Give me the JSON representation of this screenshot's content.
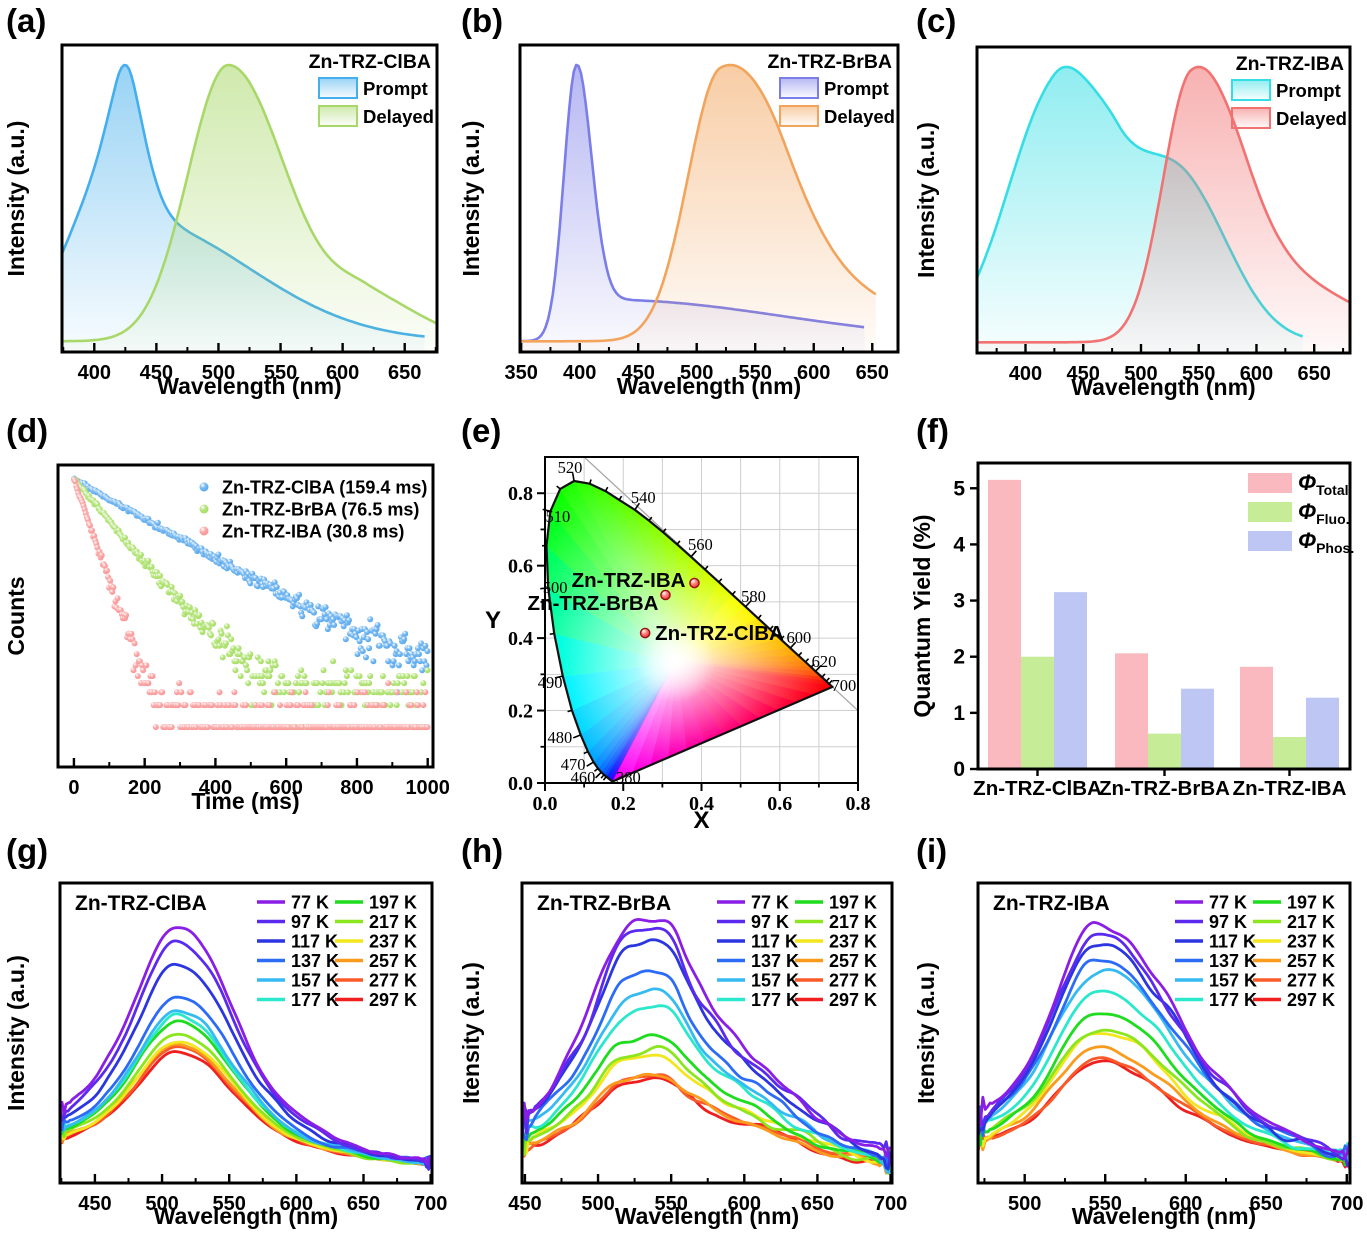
{
  "figure": {
    "background": "#ffffff"
  },
  "temperatures": [
    "77 K",
    "97 K",
    "117 K",
    "137 K",
    "157 K",
    "177 K",
    "197 K",
    "217 K",
    "237 K",
    "257 K",
    "277 K",
    "297 K"
  ],
  "temperature_colors": [
    "#8A1EE6",
    "#5A2BEE",
    "#2B35E0",
    "#2B6BF5",
    "#35BBF2",
    "#2BE8CC",
    "#1EDC1E",
    "#8CE61E",
    "#F2E61E",
    "#FA9B1E",
    "#FA5A28",
    "#F01E1E"
  ],
  "chart_data": [
    {
      "id": "a",
      "label": "(a)",
      "type": "area_spectra",
      "legend_title": "Zn-TRZ-ClBA",
      "legend_items": [
        "Prompt",
        "Delayed"
      ],
      "xlabel": "Wavelength (nm)",
      "ylabel": "Intensity (a.u.)",
      "x_range": [
        374,
        676
      ],
      "x_ticks": [
        400,
        450,
        500,
        550,
        600,
        650
      ],
      "x_minor": 25,
      "series": [
        {
          "name": "Prompt",
          "peak_nm": 418,
          "color": "#45AEEC",
          "x_end": 666,
          "components": [
            [
              0.62,
              418,
              52,
              26
            ],
            [
              0.42,
              432,
              22,
              130
            ]
          ]
        },
        {
          "name": "Delayed",
          "peak_nm": 508,
          "color": "#A9D86A",
          "x_end": 676,
          "components": [
            [
              1,
              508,
              46,
              66
            ],
            [
              0.15,
              620,
              40,
              60
            ]
          ]
        }
      ]
    },
    {
      "id": "b",
      "label": "(b)",
      "type": "area_spectra",
      "legend_title": "Zn-TRZ-BrBA",
      "legend_items": [
        "Prompt",
        "Delayed"
      ],
      "xlabel": "Wavelength (nm)",
      "ylabel": "Intensity (a.u.)",
      "x_range": [
        349,
        672
      ],
      "x_ticks": [
        350,
        400,
        450,
        500,
        550,
        600,
        650
      ],
      "x_minor": 25,
      "series": [
        {
          "name": "Prompt",
          "peak_nm": 397,
          "color": "#7B7DE8",
          "x_end": 644,
          "components": [
            [
              1,
              397,
              15,
              18
            ],
            [
              0.16,
              425,
              30,
              210
            ]
          ]
        },
        {
          "name": "Delayed",
          "peak_nm": 520,
          "color": "#F2A45C",
          "x_end": 653,
          "components": [
            [
              1,
              520,
              40,
              70
            ],
            [
              0.22,
              575,
              45,
              130
            ]
          ]
        }
      ]
    },
    {
      "id": "c",
      "label": "(c)",
      "type": "area_spectra",
      "legend_title": "Zn-TRZ-IBA",
      "legend_items": [
        "Prompt",
        "Delayed"
      ],
      "xlabel": "Wavelength (nm)",
      "ylabel": "Intensity (a.u.)",
      "x_range": [
        358,
        681
      ],
      "x_ticks": [
        400,
        450,
        500,
        550,
        600,
        650
      ],
      "x_minor": 25,
      "series": [
        {
          "name": "Prompt",
          "peak_nm": 425,
          "color": "#35DEE4",
          "x_end": 640,
          "components": [
            [
              0.85,
              425,
              58,
              45
            ],
            [
              0.5,
              480,
              40,
              70
            ],
            [
              0.35,
              545,
              50,
              55
            ]
          ]
        },
        {
          "name": "Delayed",
          "peak_nm": 543,
          "color": "#F27272",
          "x_end": 681,
          "components": [
            [
              1,
              543,
              35,
              55
            ],
            [
              0.3,
              595,
              55,
              110
            ]
          ]
        }
      ]
    },
    {
      "id": "d",
      "label": "(d)",
      "type": "scatter_decay",
      "xlabel": "Time (ms)",
      "ylabel": "Counts",
      "x_range": [
        -45,
        1015
      ],
      "x_ticks": [
        0,
        200,
        400,
        600,
        800,
        1000
      ],
      "x_minor": 100,
      "counts_top": 2500,
      "log_decades": 3.78,
      "series": [
        {
          "name": "Zn-TRZ-ClBA (159.4 ms)",
          "tau_ms": 159.4,
          "color": "#4DA3EC",
          "bg": 0.0016
        },
        {
          "name": "Zn-TRZ-BrBA (76.5 ms)",
          "tau_ms": 76.5,
          "color": "#A0DC58",
          "bg": 0.001
        },
        {
          "name": "Zn-TRZ-IBA (30.8 ms)",
          "tau_ms": 30.8,
          "color": "#F98F8F",
          "bg": 0.00045
        }
      ]
    },
    {
      "id": "e",
      "label": "(e)",
      "type": "cie",
      "xlabel": "X",
      "ylabel": "Y",
      "x_range": [
        0,
        0.8
      ],
      "y_range": [
        0,
        0.9
      ],
      "ticks": [
        0.0,
        0.2,
        0.4,
        0.6,
        0.8
      ],
      "minor_step": 0.1,
      "label_color": "#2121BD",
      "point_color": "#E42222",
      "diag_line": [
        [
          0.1,
          0.9
        ],
        [
          0.8,
          0.2
        ]
      ],
      "locus": [
        [
          380,
          0.1741,
          0.005
        ],
        [
          420,
          0.1714,
          0.0051
        ],
        [
          440,
          0.1644,
          0.0109
        ],
        [
          450,
          0.1566,
          0.0177
        ],
        [
          455,
          0.151,
          0.0227
        ],
        [
          460,
          0.144,
          0.0297
        ],
        [
          465,
          0.1355,
          0.0399
        ],
        [
          470,
          0.1241,
          0.0578
        ],
        [
          475,
          0.1096,
          0.0868
        ],
        [
          480,
          0.0913,
          0.1327
        ],
        [
          485,
          0.0687,
          0.2007
        ],
        [
          490,
          0.0454,
          0.295
        ],
        [
          495,
          0.0235,
          0.4127
        ],
        [
          500,
          0.0082,
          0.5384
        ],
        [
          505,
          0.0039,
          0.6548
        ],
        [
          510,
          0.0139,
          0.7502
        ],
        [
          515,
          0.0389,
          0.812
        ],
        [
          520,
          0.0743,
          0.8338
        ],
        [
          525,
          0.1142,
          0.8262
        ],
        [
          530,
          0.1547,
          0.8059
        ],
        [
          535,
          0.1896,
          0.7816
        ],
        [
          540,
          0.2296,
          0.7543
        ],
        [
          545,
          0.2658,
          0.7243
        ],
        [
          550,
          0.3016,
          0.6923
        ],
        [
          555,
          0.3373,
          0.6589
        ],
        [
          560,
          0.3731,
          0.6245
        ],
        [
          565,
          0.4087,
          0.5896
        ],
        [
          570,
          0.4441,
          0.5547
        ],
        [
          575,
          0.4788,
          0.5202
        ],
        [
          580,
          0.5125,
          0.4866
        ],
        [
          585,
          0.5448,
          0.4544
        ],
        [
          590,
          0.5752,
          0.4242
        ],
        [
          595,
          0.6029,
          0.3965
        ],
        [
          600,
          0.627,
          0.3725
        ],
        [
          605,
          0.6482,
          0.3514
        ],
        [
          610,
          0.6658,
          0.334
        ],
        [
          615,
          0.6801,
          0.3197
        ],
        [
          620,
          0.6915,
          0.3083
        ],
        [
          630,
          0.7079,
          0.292
        ],
        [
          640,
          0.719,
          0.2809
        ],
        [
          650,
          0.726,
          0.274
        ],
        [
          700,
          0.7347,
          0.2653
        ]
      ],
      "wl_labels": [
        {
          "t": "520",
          "x": 0.064,
          "y": 0.87
        },
        {
          "t": "540",
          "x": 0.251,
          "y": 0.787
        },
        {
          "t": "560",
          "x": 0.397,
          "y": 0.657
        },
        {
          "t": "580",
          "x": 0.533,
          "y": 0.514
        },
        {
          "t": "600",
          "x": 0.649,
          "y": 0.4
        },
        {
          "t": "620",
          "x": 0.713,
          "y": 0.334
        },
        {
          "t": "700",
          "x": 0.764,
          "y": 0.268
        },
        {
          "t": "510",
          "x": 0.033,
          "y": 0.735
        },
        {
          "t": "500",
          "x": 0.026,
          "y": 0.538
        },
        {
          "t": "490",
          "x": 0.013,
          "y": 0.276
        },
        {
          "t": "480",
          "x": 0.038,
          "y": 0.124
        },
        {
          "t": "470",
          "x": 0.072,
          "y": 0.05
        },
        {
          "t": "460",
          "x": 0.097,
          "y": 0.014
        },
        {
          "t": "380",
          "x": 0.213,
          "y": 0.014
        }
      ],
      "points": [
        {
          "name": "Zn-TRZ-ClBA",
          "x": 0.256,
          "y": 0.414,
          "label_side": "right"
        },
        {
          "name": "Zn-TRZ-BrBA",
          "x": 0.308,
          "y": 0.519,
          "label_side": "left-below"
        },
        {
          "name": "Zn-TRZ-IBA",
          "x": 0.382,
          "y": 0.552,
          "label_side": "left"
        }
      ]
    },
    {
      "id": "f",
      "label": "(f)",
      "type": "bar",
      "ylabel": "Quantum Yield (%)",
      "categories": [
        "Zn-TRZ-ClBA",
        "Zn-TRZ-BrBA",
        "Zn-TRZ-IBA"
      ],
      "y_ticks": [
        0,
        1,
        2,
        3,
        4,
        5
      ],
      "y_max": 5.45,
      "series": [
        {
          "name": "Total",
          "legend_main": "Φ",
          "legend_sub": "Total",
          "color": "#F9B9BF",
          "values": [
            5.15,
            2.06,
            1.82
          ]
        },
        {
          "name": "Fluo.",
          "legend_main": "Φ",
          "legend_sub": "Fluo.",
          "color": "#C7EC97",
          "values": [
            2.0,
            0.63,
            0.57
          ]
        },
        {
          "name": "Phos.",
          "legend_main": "Φ",
          "legend_sub": "Phos.",
          "color": "#BEC7F4",
          "values": [
            3.15,
            1.43,
            1.27
          ]
        }
      ]
    },
    {
      "id": "g",
      "label": "(g)",
      "type": "line_spectra",
      "title": "Zn-TRZ-ClBA",
      "xlabel": "Wavelength (nm)",
      "ylabel": "Intensity (a.u.)",
      "x_range": [
        424,
        701
      ],
      "x_ticks": [
        450,
        500,
        550,
        600,
        650,
        700
      ],
      "x_minor": 25,
      "peak_nm": 511,
      "scale": 0.8,
      "noise": 0.004,
      "components": [
        [
          1,
          511,
          40,
          52
        ],
        [
          0.3,
          455,
          70,
          38
        ],
        [
          0.22,
          565,
          55,
          85
        ]
      ],
      "amplitudes": [
        1.0,
        0.93,
        0.84,
        0.7,
        0.645,
        0.625,
        0.6,
        0.545,
        0.515,
        0.505,
        0.49,
        0.47
      ]
    },
    {
      "id": "h",
      "label": "(h)",
      "type": "line_spectra",
      "title": "Zn-TRZ-BrBA",
      "xlabel": "Wavelength (nm)",
      "ylabel": "Itensity (a.u.)",
      "x_range": [
        448,
        701
      ],
      "x_ticks": [
        450,
        500,
        550,
        600,
        650,
        700
      ],
      "x_minor": 25,
      "peak_nm": 518,
      "scale": 0.84,
      "noise": 0.01,
      "components": [
        [
          1,
          518,
          33,
          40
        ],
        [
          0.52,
          556,
          25,
          70
        ],
        [
          0.26,
          470,
          45,
          25
        ],
        [
          0.18,
          610,
          60,
          70
        ]
      ],
      "amplitudes": [
        1.0,
        0.94,
        0.88,
        0.76,
        0.68,
        0.62,
        0.52,
        0.465,
        0.45,
        0.355,
        0.35,
        0.345
      ]
    },
    {
      "id": "i",
      "label": "(i)",
      "type": "line_spectra",
      "title": "Zn-TRZ-IBA",
      "xlabel": "Wavelength (nm)",
      "ylabel": "Itensity (a.u.)",
      "x_range": [
        471,
        702
      ],
      "x_ticks": [
        500,
        550,
        600,
        650,
        700
      ],
      "x_minor": 25,
      "peak_nm": 543,
      "scale": 0.8,
      "noise": 0.008,
      "components": [
        [
          1,
          543,
          38,
          58
        ],
        [
          0.22,
          485,
          40,
          30
        ],
        [
          0.25,
          600,
          60,
          80
        ]
      ],
      "amplitudes": [
        1.0,
        0.955,
        0.915,
        0.85,
        0.82,
        0.72,
        0.625,
        0.565,
        0.545,
        0.49,
        0.44,
        0.42
      ]
    }
  ]
}
